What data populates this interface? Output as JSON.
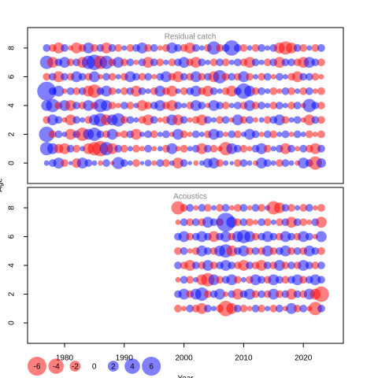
{
  "chart_data": [
    {
      "type": "bubble",
      "title": "Residual catch",
      "x": [
        1977,
        1978,
        1979,
        1980,
        1981,
        1982,
        1983,
        1984,
        1985,
        1986,
        1987,
        1988,
        1989,
        1990,
        1991,
        1992,
        1993,
        1994,
        1995,
        1996,
        1997,
        1998,
        1999,
        2000,
        2001,
        2002,
        2003,
        2004,
        2005,
        2006,
        2007,
        2008,
        2009,
        2010,
        2011,
        2012,
        2013,
        2014,
        2015,
        2016,
        2017,
        2018,
        2019,
        2020,
        2021,
        2022,
        2023
      ],
      "ages": [
        0,
        1,
        2,
        3,
        4,
        5,
        6,
        7,
        8
      ],
      "values": [
        [
          0.5,
          1,
          2,
          -1,
          0.3,
          -1.5,
          2,
          1,
          0.5,
          -0.5,
          1,
          -0.3,
          2.5,
          1,
          0.5,
          -1,
          0.3,
          0.8,
          -0.5,
          1,
          -1,
          0.5,
          -2,
          1,
          0.3,
          -0.5,
          0.5,
          1.5,
          2,
          -1,
          0.5,
          0.3,
          -1,
          1,
          0.5,
          -0.5,
          2,
          1,
          0.5,
          -1,
          1,
          0.5,
          -0.5,
          2,
          1,
          -3,
          1.5
        ],
        [
          3,
          2,
          -1.5,
          -2,
          1,
          -1,
          0.5,
          -2,
          -3,
          -4,
          3,
          -2,
          1,
          -1,
          0.5,
          -1,
          -0.5,
          1,
          -0.5,
          0.5,
          -1,
          2,
          -0.5,
          -1,
          0.5,
          1,
          -2,
          1,
          -1,
          -0.5,
          -3,
          2,
          1,
          -1,
          -0.5,
          1,
          2,
          -1,
          0.5,
          1,
          -2,
          1,
          -0.5,
          1,
          -1,
          -2,
          1
        ],
        [
          4,
          -1,
          1,
          0.5,
          -2,
          1,
          -3,
          2,
          3,
          1,
          -1,
          2,
          -0.5,
          -1,
          1,
          -2,
          0.5,
          1,
          -1,
          0.5,
          1,
          -0.5,
          2,
          -1,
          -0.5,
          1,
          0.5,
          -1,
          2,
          1,
          -0.5,
          1,
          -1,
          0.5,
          2,
          1,
          -0.5,
          1,
          -1,
          0.5,
          1,
          -0.5,
          1,
          0.5,
          -1,
          -0.5,
          -1
        ],
        [
          -1,
          2,
          1,
          -0.5,
          -2,
          1,
          0.5,
          -1,
          2,
          3,
          -2,
          2,
          3,
          -1,
          1,
          0.5,
          -1,
          -2,
          1,
          -0.5,
          -1,
          2,
          -2,
          1,
          -0.5,
          -1,
          -2,
          1,
          0.5,
          -1,
          1,
          -0.5,
          2,
          -1,
          1,
          -0.5,
          0.5,
          -1,
          1,
          2,
          -1,
          0.5,
          1,
          -0.5,
          -2,
          1,
          -1
        ],
        [
          2,
          3,
          -1,
          2,
          -2,
          1,
          -1,
          2,
          -1,
          3,
          2,
          -1,
          -0.5,
          1,
          -1,
          0.5,
          -2,
          -1,
          1,
          2,
          -1,
          -2,
          1,
          0.5,
          -1,
          2,
          1,
          -0.5,
          2,
          1,
          -1,
          0.5,
          1,
          -1,
          2,
          -1,
          1,
          0.5,
          -1,
          1,
          0.5,
          -1,
          1,
          -0.5,
          3,
          1,
          -1
        ],
        [
          6,
          1,
          2,
          -0.5,
          1,
          -1,
          1,
          -2,
          -3,
          1,
          2,
          -1,
          0.5,
          -1,
          1,
          -2,
          1,
          0.5,
          -1,
          2,
          -1,
          -2,
          0.5,
          -1,
          1,
          2,
          -1,
          -2,
          1,
          0.5,
          -1,
          -2,
          1,
          4,
          2,
          -1,
          1,
          0.5,
          -1,
          -0.5,
          1,
          -1,
          0.5,
          -1,
          1,
          -0.5,
          -1
        ],
        [
          -1,
          1,
          -2,
          1,
          -1,
          2,
          1,
          -1,
          2,
          -0.5,
          1,
          -1,
          0.5,
          -1,
          2,
          1,
          -1,
          1,
          -0.5,
          1,
          2,
          -1,
          -2,
          1,
          -1,
          2,
          -1,
          1,
          -2,
          3,
          -1,
          1,
          -1,
          2,
          -1,
          0.5,
          -1,
          1,
          -0.5,
          1,
          0.5,
          -1,
          -2,
          1,
          1,
          -1,
          -0.5
        ],
        [
          3,
          -2,
          1,
          2,
          -1,
          1,
          -2,
          3,
          4,
          -3,
          3,
          -1,
          2,
          -1,
          1,
          -0.5,
          1,
          -2,
          1,
          -1,
          0.5,
          -1,
          1,
          2,
          -1,
          -2,
          1,
          0.5,
          -1,
          1,
          -1,
          0.5,
          1,
          -1,
          -2,
          1,
          0.5,
          -1,
          1,
          -2,
          1,
          1,
          -1,
          -2,
          2,
          1,
          -1
        ],
        [
          1,
          -1,
          -2,
          1,
          -0.5,
          -2,
          -1,
          2,
          -1,
          1,
          -2,
          1,
          -1,
          0.5,
          -1,
          1,
          2,
          -1,
          1,
          -0.5,
          -1,
          2,
          1,
          -1,
          -2,
          1,
          0.5,
          -1,
          3,
          -1,
          1,
          4,
          1,
          -1,
          0.5,
          -1,
          1,
          0.5,
          1,
          -2,
          -3,
          -2,
          1,
          -1,
          0.5,
          -1,
          1
        ]
      ],
      "xlim": [
        1973.8,
        2026.7
      ],
      "ylim": [
        -1.42,
        9.42
      ],
      "yticks": [
        0,
        2,
        4,
        6,
        8
      ]
    },
    {
      "type": "bubble",
      "title": "Acoustics",
      "xlabel": "Year",
      "ylabel": "Age",
      "x": [
        1999,
        2000,
        2001,
        2002,
        2003,
        2004,
        2005,
        2006,
        2007,
        2008,
        2009,
        2010,
        2011,
        2012,
        2013,
        2014,
        2015,
        2016,
        2017,
        2018,
        2019,
        2020,
        2021,
        2022,
        2023
      ],
      "ages": [
        1,
        2,
        3,
        4,
        5,
        6,
        7,
        8
      ],
      "values": [
        [
          -1,
          -0.5,
          1,
          -1,
          -2,
          1,
          0.5,
          -1,
          -4,
          -2,
          1,
          -1,
          -0.5,
          1,
          -1,
          0.5,
          -1,
          1,
          -0.5,
          2,
          -1,
          1,
          -0.5,
          -3,
          1
        ],
        [
          1,
          2,
          -1,
          2,
          3,
          -1,
          1,
          2,
          -0.5,
          1,
          -2,
          1,
          2,
          -1,
          1,
          -1,
          2,
          -1,
          1,
          -2,
          1,
          -1,
          2,
          -2,
          -4
        ],
        [
          -0.5,
          1,
          -1,
          0.5,
          -2,
          -3,
          2,
          -1,
          1,
          2,
          -1,
          0.5,
          -1,
          2,
          1,
          -1,
          2,
          1,
          -1,
          1,
          2,
          -1,
          1,
          2,
          1
        ],
        [
          1,
          -1,
          -2,
          1,
          -1,
          2,
          -1,
          1,
          2,
          1,
          -1,
          -2,
          1,
          -1,
          -2,
          1,
          -1,
          2,
          -1,
          1,
          -1,
          2,
          1,
          -1,
          1
        ],
        [
          -1,
          1,
          -0.5,
          -1,
          2,
          1,
          -1,
          2,
          3,
          -2,
          1,
          2,
          -1,
          1,
          -1,
          2,
          -1,
          1,
          2,
          -1,
          1,
          -1,
          2,
          1,
          -1
        ],
        [
          1,
          2,
          -1,
          1,
          2,
          1,
          -2,
          1,
          2,
          -1,
          2,
          3,
          2,
          -1,
          1,
          2,
          1,
          -1,
          2,
          1,
          -1,
          2,
          1,
          -0.5,
          2
        ],
        [
          -0.5,
          1,
          -1,
          1,
          -1,
          2,
          1,
          -1,
          6,
          2,
          -1,
          1,
          -1,
          -0.5,
          1,
          -1,
          0.5,
          -1,
          1,
          -2,
          1,
          -1,
          -0.5,
          1,
          -2
        ],
        [
          -3,
          -1,
          1,
          -0.5,
          1,
          -1,
          0.5,
          -1,
          1,
          -0.5,
          -1,
          1,
          -0.5,
          1,
          -1,
          0.5,
          -3,
          -2,
          1,
          -1,
          0.5,
          -1,
          1,
          -0.5,
          -1
        ]
      ],
      "xlim": [
        1973.8,
        2026.7
      ],
      "ylim": [
        -1.42,
        9.42
      ],
      "yticks": [
        0,
        2,
        4,
        6,
        8
      ],
      "xticks": [
        1980,
        1990,
        2000,
        2010,
        2020
      ],
      "size_legend": [
        -6,
        -4,
        -2,
        0,
        2,
        4,
        6
      ],
      "positive_color": "#0000ff",
      "negative_color": "#ff0000"
    }
  ]
}
